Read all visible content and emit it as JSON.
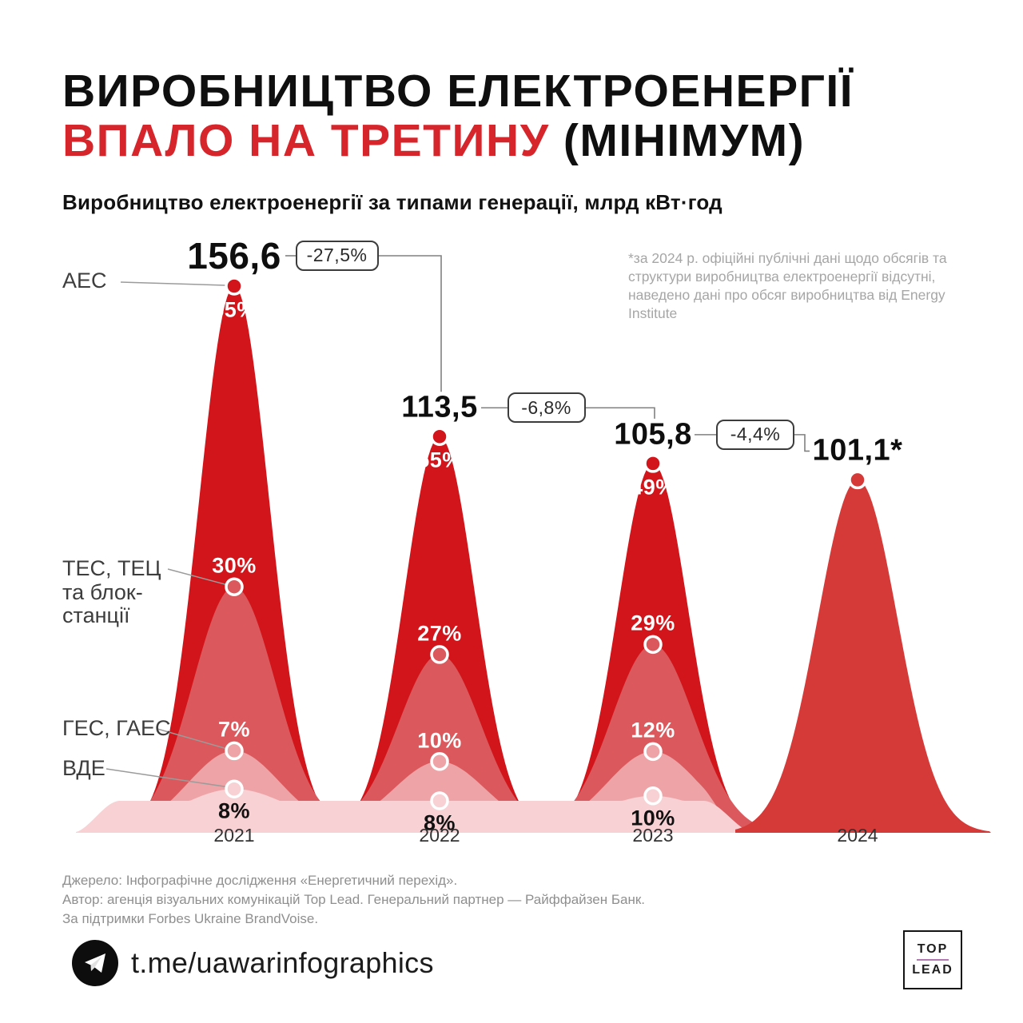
{
  "title": {
    "line1": "ВИРОБНИЦТВО ЕЛЕКТРОЕНЕРГІЇ",
    "line2_red": "ВПАЛО НА ТРЕТИНУ",
    "line2_black": " (МІНІМУМ)"
  },
  "subtitle": "Виробництво електроенергії за типами генерації, млрд кВт·год",
  "footnote": "*за 2024 р. офіційні публічні дані щодо обсягів та структури виробництва електроенергії відсутні, наведено дані про обсяг виробництва від Energy Institute",
  "chart_data": {
    "type": "area",
    "title": "Виробництво електроенергії за типами генерації",
    "unit": "млрд кВт·год",
    "x": [
      "2021",
      "2022",
      "2023",
      "2024"
    ],
    "totals": [
      156.6,
      113.5,
      105.8,
      101.1
    ],
    "total_labels": [
      "156,6",
      "113,5",
      "105,8",
      "101,1*"
    ],
    "changes": [
      "-27,5%",
      "-6,8%",
      "-4,4%"
    ],
    "series": [
      {
        "name": "АЕС",
        "color": "#d2141b",
        "shares_pct": [
          55,
          55,
          49,
          null
        ],
        "share_labels": [
          "55%",
          "55%",
          "49%",
          ""
        ]
      },
      {
        "name": "ТЕС, ТЕЦ та блок-станції",
        "name_lines": [
          "ТЕС, ТЕЦ",
          "та блок-",
          "станції"
        ],
        "color": "#db585d",
        "shares_pct": [
          30,
          27,
          29,
          null
        ],
        "share_labels": [
          "30%",
          "27%",
          "29%",
          ""
        ]
      },
      {
        "name": "ГЕС, ГАЕС",
        "color": "#eea4a7",
        "shares_pct": [
          7,
          10,
          12,
          null
        ],
        "share_labels": [
          "7%",
          "10%",
          "12%",
          ""
        ]
      },
      {
        "name": "ВДЕ",
        "color": "#f7d1d4",
        "shares_pct": [
          8,
          8,
          10,
          null
        ],
        "share_labels": [
          "8%",
          "8%",
          "10%",
          ""
        ]
      }
    ],
    "colors": {
      "year2024_fill": "#d63a38",
      "title_accent": "#d6252b",
      "share_label_light": "#ffffff",
      "share_label_dark": "#111111",
      "connector": "#808080",
      "leader": "#9b9b9b"
    },
    "legend_position": "left-labels",
    "grid": false
  },
  "footer": {
    "line1": "Джерело: Інфографічне дослідження «Енергетичний перехід».",
    "line2": "Автор: агенція візуальних комунікацій Top Lead. Генеральний партнер — Райффайзен Банк.",
    "line3": "За підтримки Forbes Ukraine BrandVoise."
  },
  "social": {
    "handle": "t.me/uawarinfographics",
    "icon": "telegram-icon"
  },
  "logo": {
    "top": "TOP",
    "lead": "LEAD",
    "divider_color": "#b279b2"
  }
}
